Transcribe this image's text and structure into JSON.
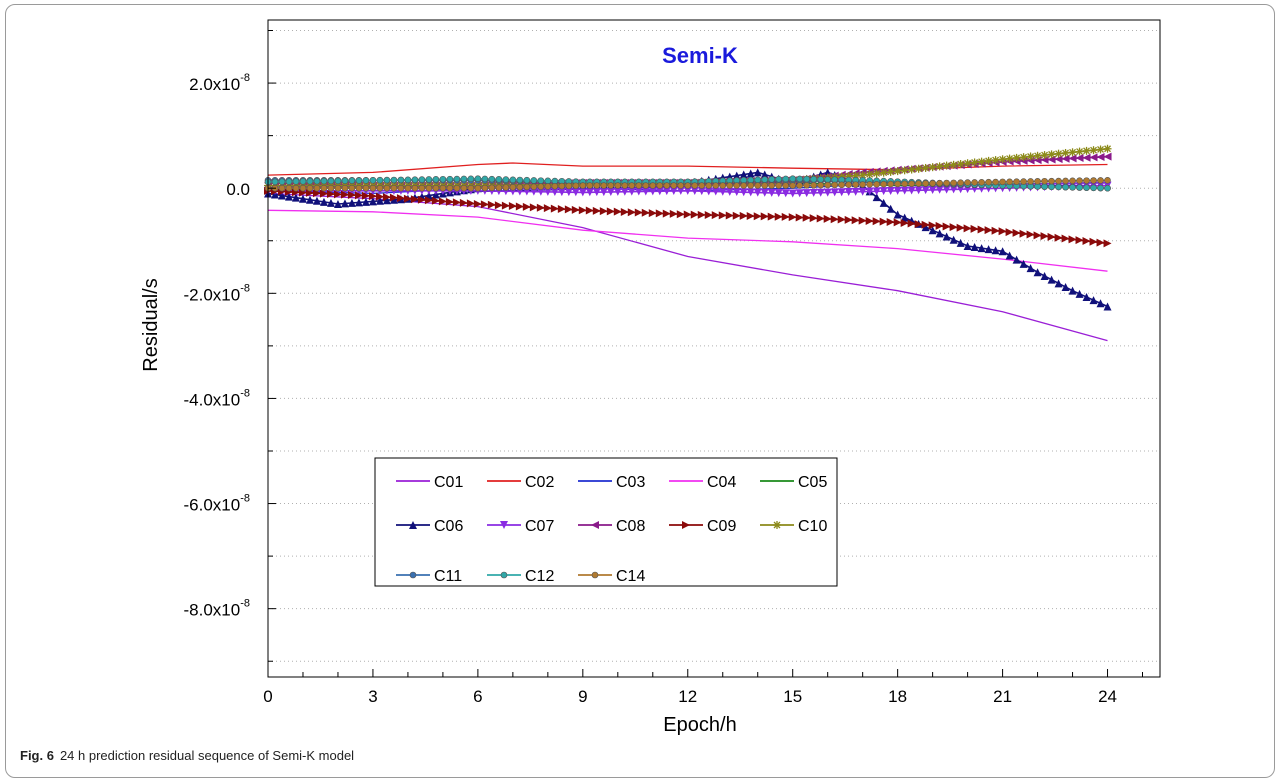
{
  "caption": {
    "label": "Fig. 6",
    "text": "24 h prediction residual sequence of Semi-K model"
  },
  "colors": {
    "title": "#1a1adc",
    "grid": "#b0b0b0",
    "axis": "#000000"
  },
  "chart_data": {
    "type": "line",
    "title": "Semi-K",
    "xlabel": "Epoch/h",
    "ylabel": "Residual/s",
    "xlim": [
      0,
      25.5
    ],
    "ylim": [
      -9.3e-08,
      3.2e-08
    ],
    "x_ticks": [
      0,
      3,
      6,
      9,
      12,
      15,
      18,
      21,
      24
    ],
    "y_ticks": [
      {
        "value": 2e-08,
        "mantissa": "2.0x10",
        "exponent": "-8"
      },
      {
        "value": 0,
        "mantissa": "0.0",
        "exponent": ""
      },
      {
        "value": -2e-08,
        "mantissa": "-2.0x10",
        "exponent": "-8"
      },
      {
        "value": -4e-08,
        "mantissa": "-4.0x10",
        "exponent": "-8"
      },
      {
        "value": -6e-08,
        "mantissa": "-6.0x10",
        "exponent": "-8"
      },
      {
        "value": -8e-08,
        "mantissa": "-8.0x10",
        "exponent": "-8"
      }
    ],
    "grid": true,
    "legend_position": "lower-left",
    "series": [
      {
        "name": "C01",
        "color": "#9a1fd6",
        "marker": "none",
        "points": [
          [
            0,
            -1e-09
          ],
          [
            3,
            -2e-09
          ],
          [
            6,
            -3.5e-09
          ],
          [
            9,
            -7.5e-09
          ],
          [
            12,
            -1.3e-08
          ],
          [
            15,
            -1.65e-08
          ],
          [
            18,
            -1.95e-08
          ],
          [
            21,
            -2.35e-08
          ],
          [
            24,
            -2.9e-08
          ]
        ]
      },
      {
        "name": "C02",
        "color": "#e02020",
        "marker": "none",
        "points": [
          [
            0,
            2.5e-09
          ],
          [
            3,
            3e-09
          ],
          [
            6,
            4.5e-09
          ],
          [
            7,
            4.8e-09
          ],
          [
            9,
            4.2e-09
          ],
          [
            12,
            4.2e-09
          ],
          [
            15,
            3.8e-09
          ],
          [
            18,
            3.5e-09
          ],
          [
            21,
            4.2e-09
          ],
          [
            24,
            4.5e-09
          ]
        ]
      },
      {
        "name": "C03",
        "color": "#1f2fd0",
        "marker": "none",
        "points": [
          [
            0,
            -5e-10
          ],
          [
            3,
            -1e-09
          ],
          [
            6,
            0.0
          ],
          [
            9,
            0.0
          ],
          [
            12,
            -5e-10
          ],
          [
            15,
            0.0
          ],
          [
            18,
            1e-09
          ],
          [
            21,
            5e-10
          ],
          [
            24,
            5e-10
          ]
        ]
      },
      {
        "name": "C04",
        "color": "#f030f0",
        "marker": "none",
        "points": [
          [
            0,
            -4.2e-09
          ],
          [
            3,
            -4.5e-09
          ],
          [
            6,
            -5.5e-09
          ],
          [
            9,
            -8e-09
          ],
          [
            12,
            -9.5e-09
          ],
          [
            15,
            -1.02e-08
          ],
          [
            18,
            -1.15e-08
          ],
          [
            21,
            -1.35e-08
          ],
          [
            24,
            -1.58e-08
          ]
        ]
      },
      {
        "name": "C05",
        "color": "#1a8a1a",
        "marker": "none",
        "points": [
          [
            0,
            5e-10
          ],
          [
            3,
            5e-10
          ],
          [
            6,
            5e-10
          ],
          [
            9,
            8e-10
          ],
          [
            12,
            8e-10
          ],
          [
            15,
            1e-09
          ],
          [
            18,
            5e-10
          ],
          [
            21,
            8e-10
          ],
          [
            24,
            1e-09
          ]
        ]
      },
      {
        "name": "C06",
        "color": "#10107a",
        "marker": "triangle-up",
        "points": [
          [
            0,
            -1e-09
          ],
          [
            2,
            -3e-09
          ],
          [
            4,
            -2e-09
          ],
          [
            6,
            0.0
          ],
          [
            9,
            5e-10
          ],
          [
            12,
            1e-09
          ],
          [
            14,
            3e-09
          ],
          [
            15,
            1e-09
          ],
          [
            16,
            3e-09
          ],
          [
            17,
            5e-10
          ],
          [
            18,
            -5e-09
          ],
          [
            19,
            -8e-09
          ],
          [
            20,
            -1.1e-08
          ],
          [
            21,
            -1.2e-08
          ],
          [
            22,
            -1.6e-08
          ],
          [
            23,
            -1.95e-08
          ],
          [
            24,
            -2.25e-08
          ]
        ]
      },
      {
        "name": "C07",
        "color": "#8a2be2",
        "marker": "triangle-down",
        "points": [
          [
            0,
            -5e-10
          ],
          [
            3,
            -5e-10
          ],
          [
            6,
            -5e-10
          ],
          [
            9,
            -8e-10
          ],
          [
            12,
            -5e-10
          ],
          [
            15,
            -1e-09
          ],
          [
            18,
            -5e-10
          ],
          [
            21,
            0.0
          ],
          [
            24,
            5e-10
          ]
        ]
      },
      {
        "name": "C08",
        "color": "#8a1a8a",
        "marker": "triangle-left",
        "points": [
          [
            0,
            1e-09
          ],
          [
            3,
            5e-10
          ],
          [
            6,
            5e-10
          ],
          [
            9,
            1e-09
          ],
          [
            12,
            1e-09
          ],
          [
            15,
            1.5e-09
          ],
          [
            17,
            3e-09
          ],
          [
            19,
            4e-09
          ],
          [
            21,
            5e-09
          ],
          [
            24,
            6e-09
          ]
        ]
      },
      {
        "name": "C09",
        "color": "#8b0a0a",
        "marker": "triangle-right",
        "points": [
          [
            0,
            -5e-10
          ],
          [
            3,
            -1.5e-09
          ],
          [
            6,
            -3e-09
          ],
          [
            9,
            -4.2e-09
          ],
          [
            12,
            -5e-09
          ],
          [
            15,
            -5.5e-09
          ],
          [
            18,
            -6.5e-09
          ],
          [
            21,
            -8.2e-09
          ],
          [
            24,
            -1.05e-08
          ]
        ]
      },
      {
        "name": "C10",
        "color": "#8c8a1a",
        "marker": "star",
        "points": [
          [
            0,
            5e-10
          ],
          [
            3,
            5e-10
          ],
          [
            6,
            5e-10
          ],
          [
            9,
            8e-10
          ],
          [
            12,
            1e-09
          ],
          [
            15,
            1.5e-09
          ],
          [
            17,
            2.5e-09
          ],
          [
            19,
            4e-09
          ],
          [
            21,
            5.5e-09
          ],
          [
            24,
            7.5e-09
          ]
        ]
      },
      {
        "name": "C11",
        "color": "#3a70b0",
        "marker": "circle",
        "points": [
          [
            0,
            1.5e-09
          ],
          [
            3,
            1.5e-09
          ],
          [
            6,
            1.5e-09
          ],
          [
            9,
            1.2e-09
          ],
          [
            12,
            1.2e-09
          ],
          [
            15,
            1.5e-09
          ],
          [
            18,
            1e-09
          ],
          [
            21,
            5e-10
          ],
          [
            24,
            0.0
          ]
        ]
      },
      {
        "name": "C12",
        "color": "#30a8a8",
        "marker": "circle",
        "points": [
          [
            0,
            1.2e-09
          ],
          [
            3,
            1.5e-09
          ],
          [
            6,
            1.8e-09
          ],
          [
            9,
            1.2e-09
          ],
          [
            12,
            1.2e-09
          ],
          [
            15,
            1.8e-09
          ],
          [
            17,
            1.5e-09
          ],
          [
            19,
            1e-09
          ],
          [
            21,
            5e-10
          ],
          [
            24,
            0.0
          ]
        ]
      },
      {
        "name": "C14",
        "color": "#b07a30",
        "marker": "circle",
        "points": [
          [
            0,
            0.0
          ],
          [
            3,
            0.0
          ],
          [
            6,
            0.0
          ],
          [
            9,
            5e-10
          ],
          [
            12,
            5e-10
          ],
          [
            15,
            5e-10
          ],
          [
            18,
            8e-10
          ],
          [
            21,
            1.2e-09
          ],
          [
            24,
            1.5e-09
          ]
        ]
      }
    ]
  }
}
